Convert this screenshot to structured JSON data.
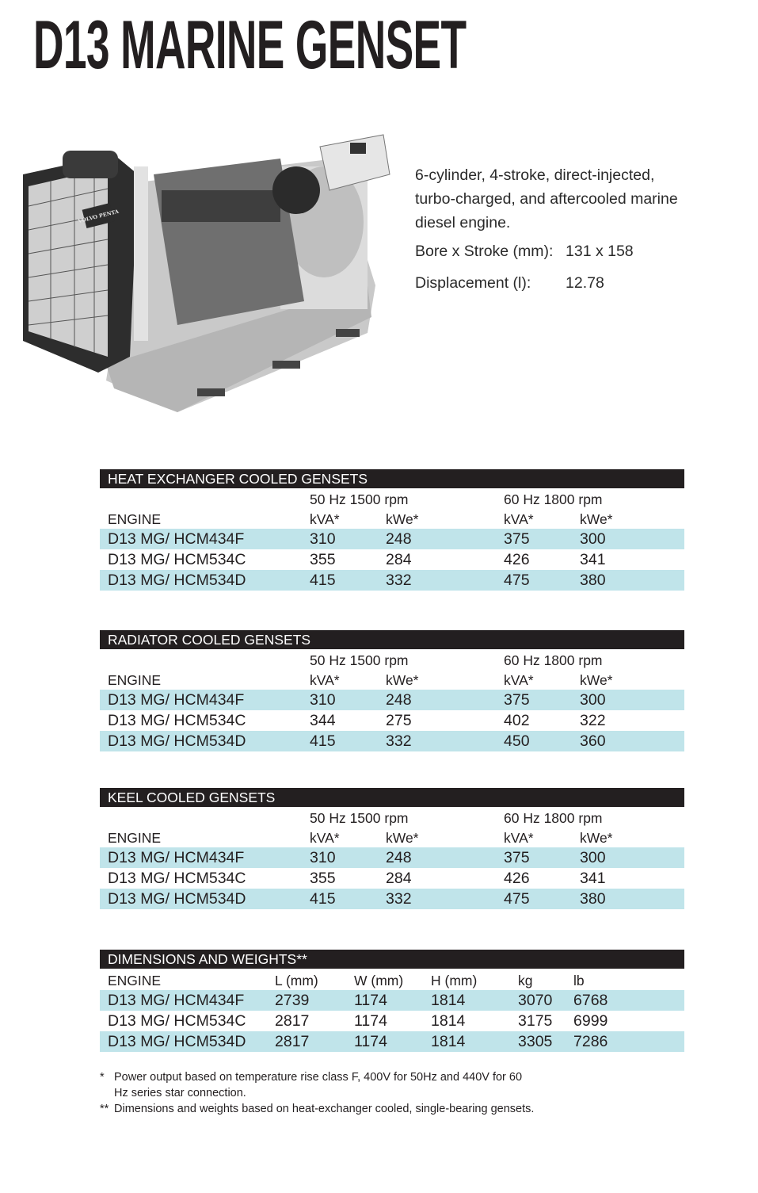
{
  "title": "D13 MARINE GENSET",
  "description": {
    "lines": [
      "6-cylinder, 4-stroke, direct-injected,",
      "turbo-charged, and aftercooled marine",
      "diesel engine."
    ],
    "specs": [
      {
        "label": "Bore x Stroke (mm):",
        "value": "131 x 158"
      },
      {
        "label": "Displacement (l):",
        "value": "12.78"
      }
    ]
  },
  "colors": {
    "header_bar": "#231f20",
    "row_shade": "#c0e4ea"
  },
  "output_tables": [
    {
      "title": "HEAT EXCHANGER COOLED GENSETS",
      "group_headers": [
        "50 Hz 1500 rpm",
        "60 Hz 1800 rpm"
      ],
      "columns": [
        "ENGINE",
        "kVA*",
        "kWe*",
        "kVA*",
        "kWe*"
      ],
      "rows": [
        [
          "D13 MG/ HCM434F",
          "310",
          "248",
          "375",
          "300"
        ],
        [
          "D13 MG/ HCM534C",
          "355",
          "284",
          "426",
          "341"
        ],
        [
          "D13 MG/ HCM534D",
          "415",
          "332",
          "475",
          "380"
        ]
      ]
    },
    {
      "title": "RADIATOR COOLED GENSETS",
      "group_headers": [
        "50 Hz 1500 rpm",
        "60 Hz 1800 rpm"
      ],
      "columns": [
        "ENGINE",
        "kVA*",
        "kWe*",
        "kVA*",
        "kWe*"
      ],
      "rows": [
        [
          "D13 MG/ HCM434F",
          "310",
          "248",
          "375",
          "300"
        ],
        [
          "D13 MG/ HCM534C",
          "344",
          "275",
          "402",
          "322"
        ],
        [
          "D13 MG/ HCM534D",
          "415",
          "332",
          "450",
          "360"
        ]
      ]
    },
    {
      "title": "KEEL COOLED GENSETS",
      "group_headers": [
        "50 Hz 1500 rpm",
        "60 Hz 1800 rpm"
      ],
      "columns": [
        "ENGINE",
        "kVA*",
        "kWe*",
        "kVA*",
        "kWe*"
      ],
      "rows": [
        [
          "D13 MG/ HCM434F",
          "310",
          "248",
          "375",
          "300"
        ],
        [
          "D13 MG/ HCM534C",
          "355",
          "284",
          "426",
          "341"
        ],
        [
          "D13 MG/ HCM534D",
          "415",
          "332",
          "475",
          "380"
        ]
      ]
    }
  ],
  "dimensions_table": {
    "title": "DIMENSIONS AND WEIGHTS**",
    "columns": [
      "ENGINE",
      "L (mm)",
      "W (mm)",
      "H (mm)",
      "kg",
      "lb"
    ],
    "rows": [
      [
        "D13 MG/ HCM434F",
        "2739",
        "1174",
        "1814",
        "3070",
        "6768"
      ],
      [
        "D13 MG/ HCM534C",
        "2817",
        "1174",
        "1814",
        "3175",
        "6999"
      ],
      [
        "D13 MG/ HCM534D",
        "2817",
        "1174",
        "1814",
        "3305",
        "7286"
      ]
    ]
  },
  "footnotes": [
    {
      "marker": "*",
      "text": "Power output based on temperature rise class F, 400V for 50Hz and 440V for 60 Hz series star connection."
    },
    {
      "marker": "**",
      "text": "Dimensions and weights based on heat-exchanger cooled, single-bearing gensets."
    }
  ],
  "image_logo_text": "VOLVO PENTA"
}
